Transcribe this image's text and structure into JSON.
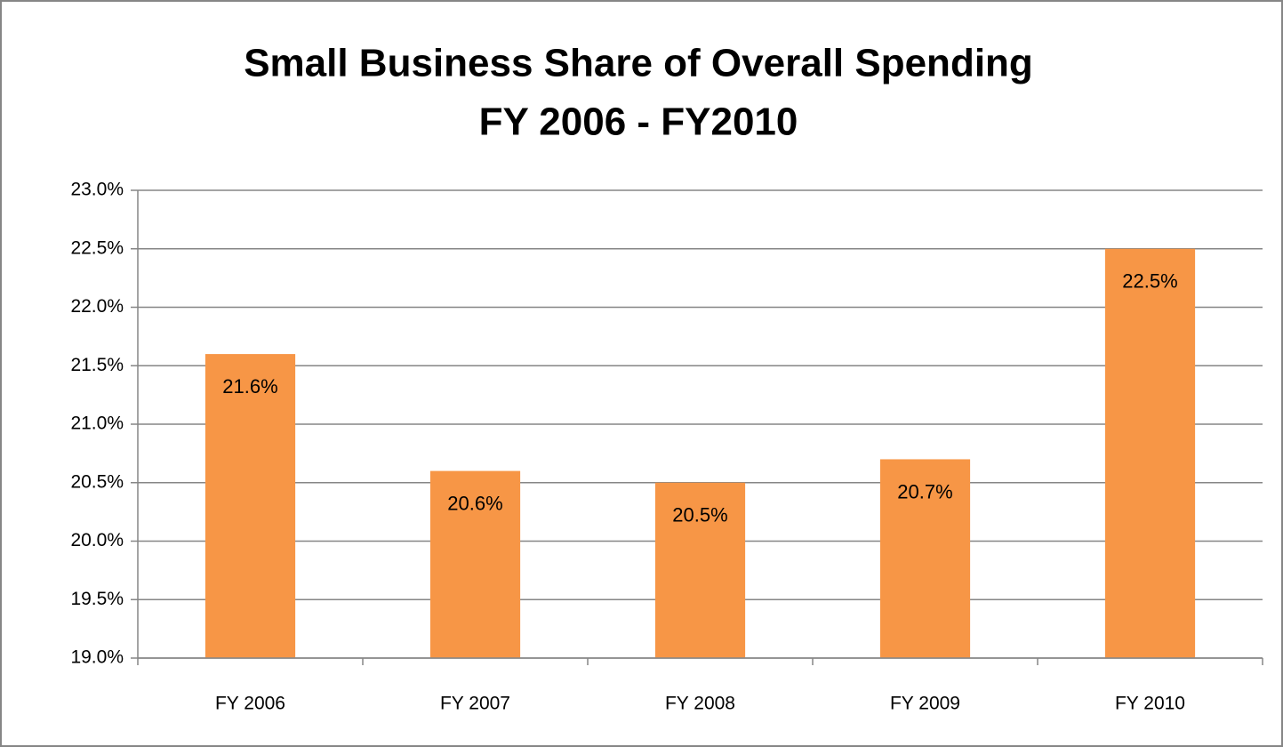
{
  "chart_data": {
    "type": "bar",
    "title": [
      "Small Business Share of Overall Spending",
      "FY 2006 - FY2010"
    ],
    "categories": [
      "FY 2006",
      "FY 2007",
      "FY 2008",
      "FY 2009",
      "FY 2010"
    ],
    "values": [
      21.6,
      20.6,
      20.5,
      20.7,
      22.5
    ],
    "value_labels": [
      "21.6%",
      "20.6%",
      "20.5%",
      "20.7%",
      "22.5%"
    ],
    "color": "#f79646",
    "ylim": [
      19.0,
      23.0
    ],
    "yticks": [
      {
        "value": 19.0,
        "label": "19.0%"
      },
      {
        "value": 19.5,
        "label": "19.5%"
      },
      {
        "value": 20.0,
        "label": "20.0%"
      },
      {
        "value": 20.5,
        "label": "20.5%"
      },
      {
        "value": 21.0,
        "label": "21.0%"
      },
      {
        "value": 21.5,
        "label": "21.5%"
      },
      {
        "value": 22.0,
        "label": "22.0%"
      },
      {
        "value": 22.5,
        "label": "22.5%"
      },
      {
        "value": 23.0,
        "label": "23.0%"
      }
    ],
    "grid": true
  }
}
